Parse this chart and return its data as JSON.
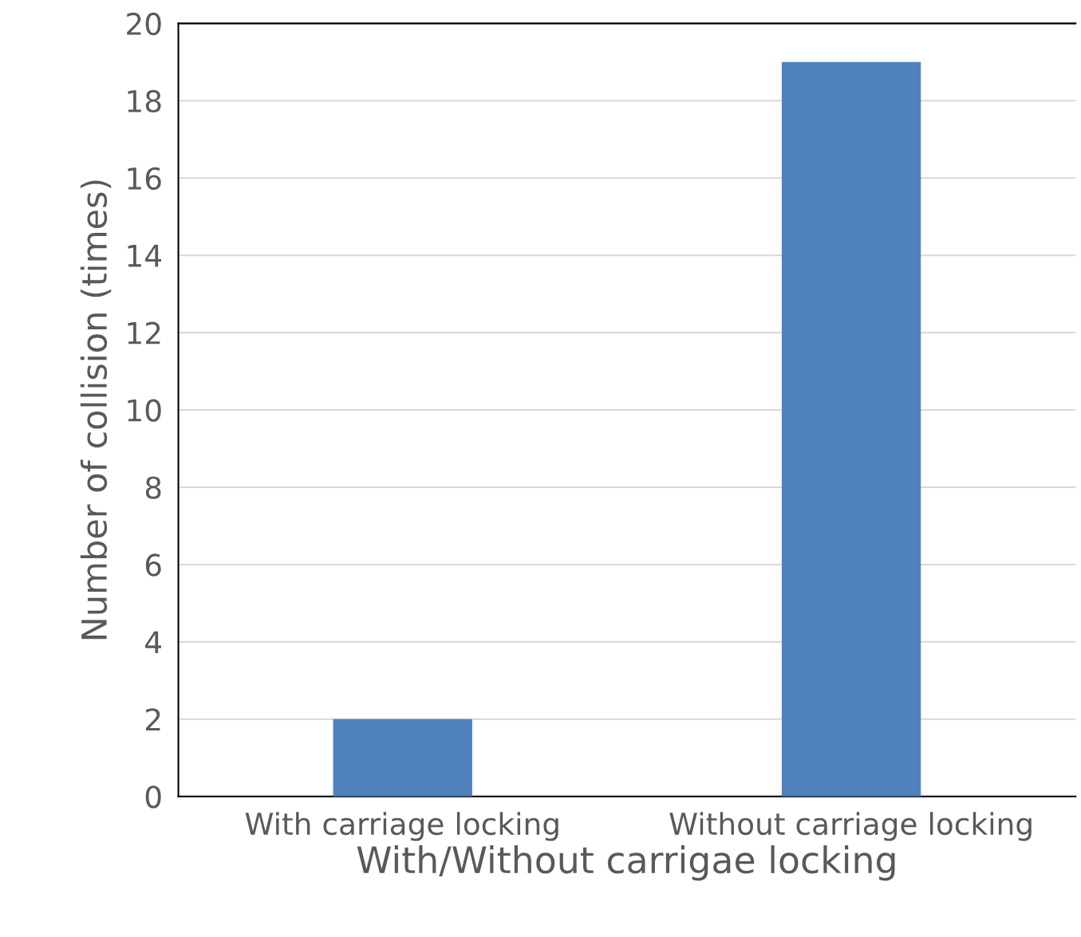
{
  "chart_data": {
    "type": "bar",
    "xlabel": "With/Without carrigae locking",
    "ylabel": "Number of collision (times)",
    "categories": [
      "With carriage locking",
      "Without carriage locking"
    ],
    "values": [
      2,
      19
    ],
    "color": "#4f81bd",
    "ylim": [
      0,
      20
    ],
    "yticks": [
      0,
      2,
      4,
      6,
      8,
      10,
      12,
      14,
      16,
      18,
      20
    ],
    "grid": "y",
    "legend": false
  }
}
